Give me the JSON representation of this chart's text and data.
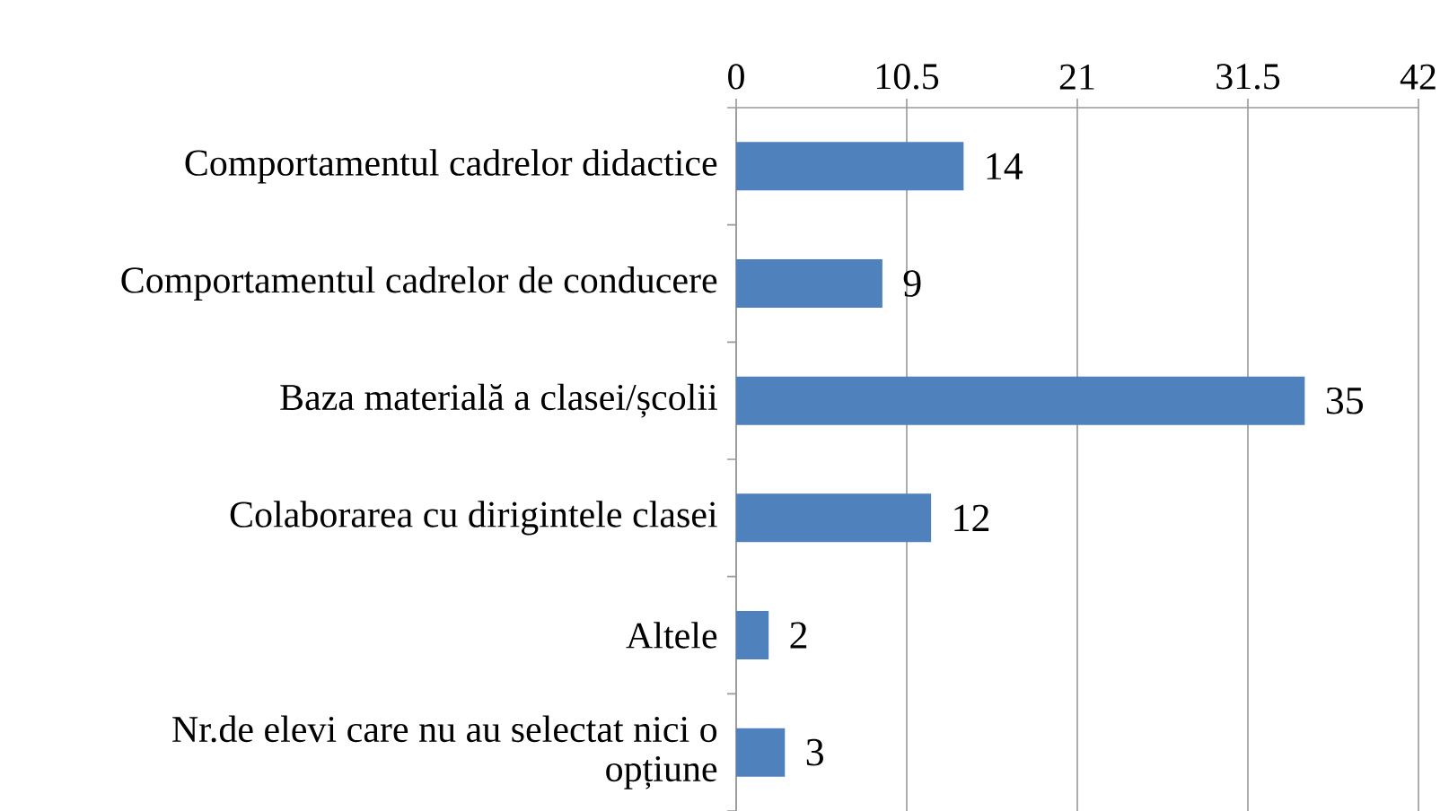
{
  "chart_data": {
    "type": "bar",
    "orientation": "horizontal",
    "categories": [
      "Comportamentul cadrelor didactice",
      "Comportamentul cadrelor de conducere",
      "Baza materială a clasei/școlii",
      "Colaborarea cu dirigintele clasei",
      "Altele",
      "Nr.de elevi care nu au selectat nici o opțiune"
    ],
    "values": [
      14,
      9,
      35,
      12,
      2,
      3
    ],
    "color": "#4f81bd",
    "xlim": [
      0,
      42
    ],
    "xticks": [
      0,
      10.5,
      21,
      31.5,
      42
    ],
    "grid": "x",
    "data_labels": true
  }
}
